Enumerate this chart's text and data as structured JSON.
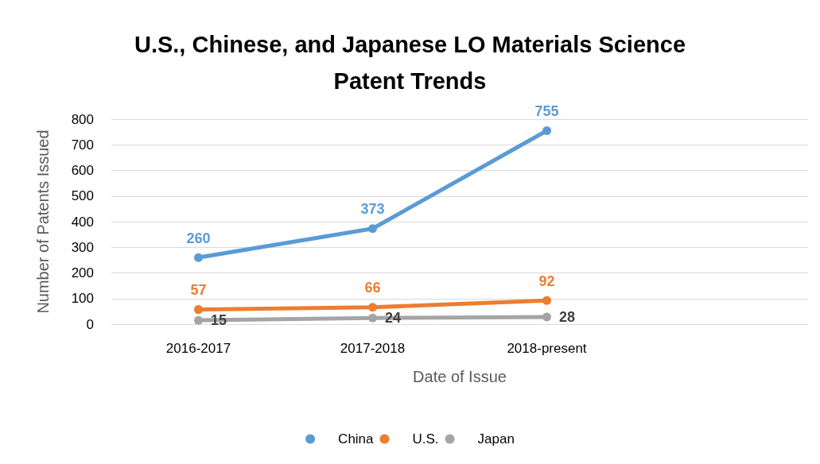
{
  "chart_data": {
    "type": "line",
    "title": "U.S., Chinese, and Japanese LO Materials Science\nPatent Trends",
    "xlabel": "Date of Issue",
    "ylabel": "Number of Patents Issued",
    "categories": [
      "2016-2017",
      "2017-2018",
      "2018-present",
      null
    ],
    "series": [
      {
        "name": "China",
        "color": "#5b9bd5",
        "values": [
          260,
          373,
          755,
          null
        ]
      },
      {
        "name": "U.S.",
        "color": "#ed7d31",
        "values": [
          57,
          66,
          92,
          null
        ]
      },
      {
        "name": "Japan",
        "color": "#a5a5a5",
        "values": [
          15,
          24,
          28,
          null
        ]
      }
    ],
    "ylim": [
      0,
      800
    ],
    "yticks": [
      0,
      100,
      200,
      300,
      400,
      500,
      600,
      700,
      800
    ],
    "grid": "y",
    "legend": "bottom",
    "marker": "circle",
    "line_style": "solid",
    "data_labels": true
  }
}
